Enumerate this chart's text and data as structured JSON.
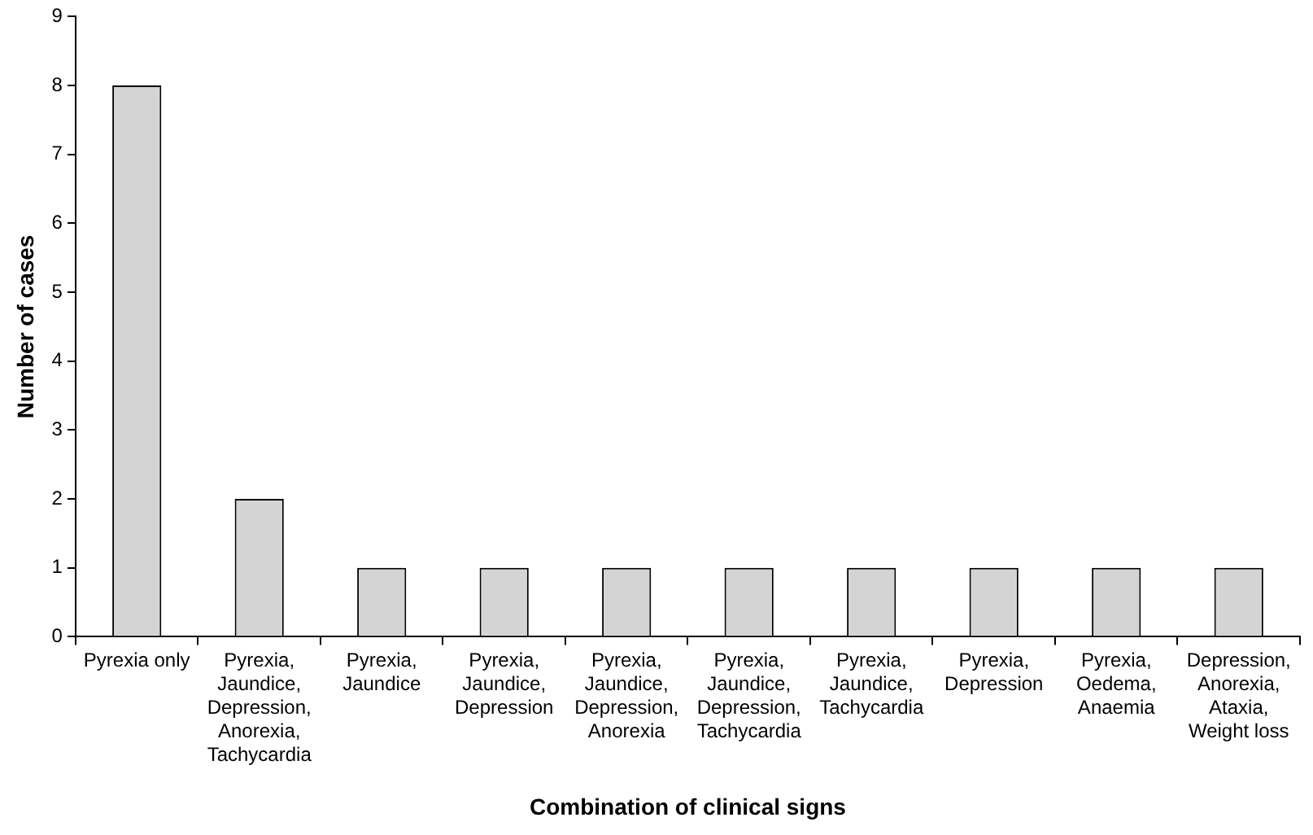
{
  "chart_data": {
    "type": "bar",
    "xlabel": "Combination of clinical signs",
    "ylabel": "Number of cases",
    "categories": [
      "Pyrexia only",
      "Pyrexia, Jaundice, Depression, Anorexia, Tachycardia",
      "Pyrexia, Jaundice",
      "Pyrexia, Jaundice, Depression",
      "Pyrexia, Jaundice, Depression, Anorexia",
      "Pyrexia, Jaundice, Depression, Tachycardia",
      "Pyrexia, Jaundice, Tachycardia",
      "Pyrexia, Depression",
      "Pyrexia, Oedema, Anaemia",
      "Depression, Anorexia, Ataxia, Weight loss"
    ],
    "values": [
      8,
      2,
      1,
      1,
      1,
      1,
      1,
      1,
      1,
      1
    ],
    "color": "#d4d4d4",
    "ylim": [
      0,
      9
    ],
    "yticks": [
      0,
      1,
      2,
      3,
      4,
      5,
      6,
      7,
      8,
      9
    ],
    "grid": false,
    "legend": false
  }
}
